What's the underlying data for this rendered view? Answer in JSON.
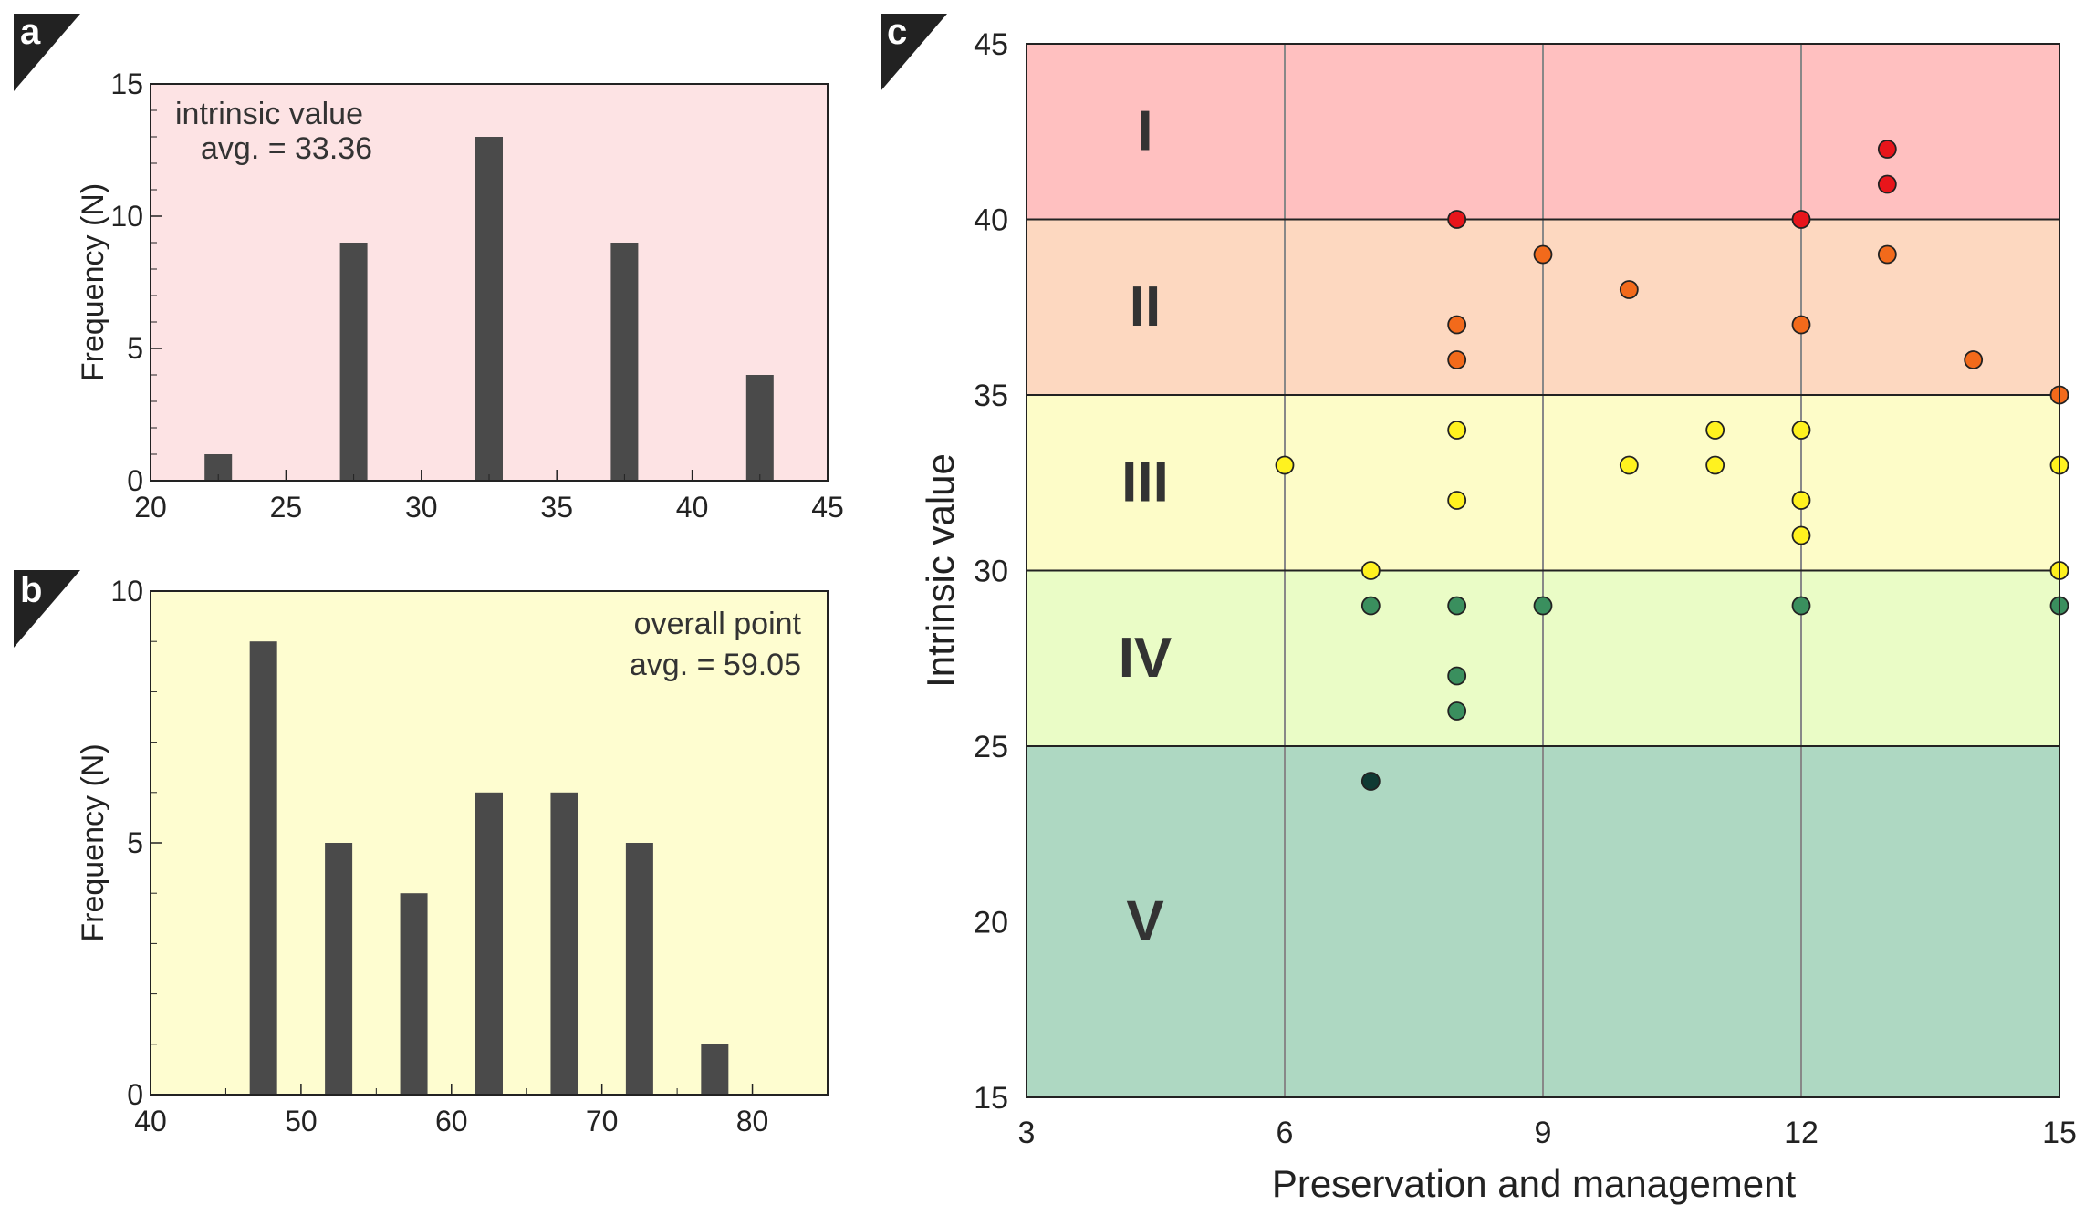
{
  "chart_data": [
    {
      "panel": "a",
      "type": "bar",
      "annotation": [
        "intrinsic value",
        "avg. = 33.36"
      ],
      "ylabel": "Frequency (N)",
      "xlabel": "",
      "xlim": [
        20,
        45
      ],
      "ylim": [
        0,
        15
      ],
      "xticks": [
        20,
        25,
        30,
        35,
        40,
        45
      ],
      "yticks": [
        0,
        5,
        10,
        15
      ],
      "bin_centers": [
        22.5,
        27.5,
        32.5,
        37.5,
        42.5
      ],
      "values": [
        1,
        9,
        13,
        9,
        4
      ],
      "bar_color": "#4a4a4a",
      "background": "#fde3e4"
    },
    {
      "panel": "b",
      "type": "bar",
      "annotation": [
        "overall point",
        "avg. = 59.05"
      ],
      "ylabel": "Frequency (N)",
      "xlabel": "",
      "xlim": [
        40,
        85
      ],
      "ylim": [
        0,
        10
      ],
      "xticks": [
        40,
        50,
        60,
        70,
        80
      ],
      "yticks": [
        0,
        5,
        10
      ],
      "bin_centers": [
        47.5,
        52.5,
        57.5,
        62.5,
        67.5,
        72.5,
        77.5
      ],
      "values": [
        9,
        5,
        4,
        6,
        6,
        5,
        1
      ],
      "bar_color": "#4a4a4a",
      "background": "#fefdd0"
    },
    {
      "panel": "c",
      "type": "scatter",
      "xlabel": "Preservation and management",
      "ylabel": "Intrinsic value",
      "xlim": [
        3,
        15
      ],
      "ylim": [
        15,
        45
      ],
      "xticks": [
        3,
        6,
        9,
        12,
        15
      ],
      "yticks": [
        15,
        20,
        25,
        30,
        35,
        40,
        45
      ],
      "zones": [
        {
          "label": "I",
          "from": 40,
          "to": 45,
          "color": "#ffc0c0"
        },
        {
          "label": "II",
          "from": 35,
          "to": 40,
          "color": "#fdd8c0"
        },
        {
          "label": "III",
          "from": 30,
          "to": 35,
          "color": "#fdfcc8"
        },
        {
          "label": "IV",
          "from": 25,
          "to": 30,
          "color": "#eafcc6"
        },
        {
          "label": "V",
          "from": 15,
          "to": 25,
          "color": "#aed8c2"
        }
      ],
      "series": [
        {
          "name": "I",
          "color": "#e8151b",
          "points": [
            [
              8,
              40
            ],
            [
              12,
              40
            ],
            [
              13,
              41
            ],
            [
              13,
              42
            ]
          ]
        },
        {
          "name": "II",
          "color": "#f26a1b",
          "points": [
            [
              8,
              37
            ],
            [
              8,
              36
            ],
            [
              9,
              39
            ],
            [
              10,
              38
            ],
            [
              12,
              37
            ],
            [
              13,
              39
            ],
            [
              14,
              36
            ],
            [
              15,
              35
            ]
          ]
        },
        {
          "name": "III",
          "color": "#fff21f",
          "points": [
            [
              6,
              33
            ],
            [
              7,
              30
            ],
            [
              8,
              34
            ],
            [
              8,
              32
            ],
            [
              10,
              33
            ],
            [
              11,
              34
            ],
            [
              11,
              33
            ],
            [
              12,
              34
            ],
            [
              12,
              32
            ],
            [
              12,
              31
            ],
            [
              15,
              33
            ],
            [
              15,
              30
            ]
          ]
        },
        {
          "name": "IV",
          "color": "#3a8f5e",
          "points": [
            [
              7,
              29
            ],
            [
              8,
              29
            ],
            [
              8,
              27
            ],
            [
              8,
              26
            ],
            [
              9,
              29
            ],
            [
              12,
              29
            ],
            [
              15,
              29
            ]
          ]
        },
        {
          "name": "V",
          "color": "#0f3a33",
          "points": [
            [
              7,
              24
            ]
          ]
        }
      ]
    }
  ]
}
